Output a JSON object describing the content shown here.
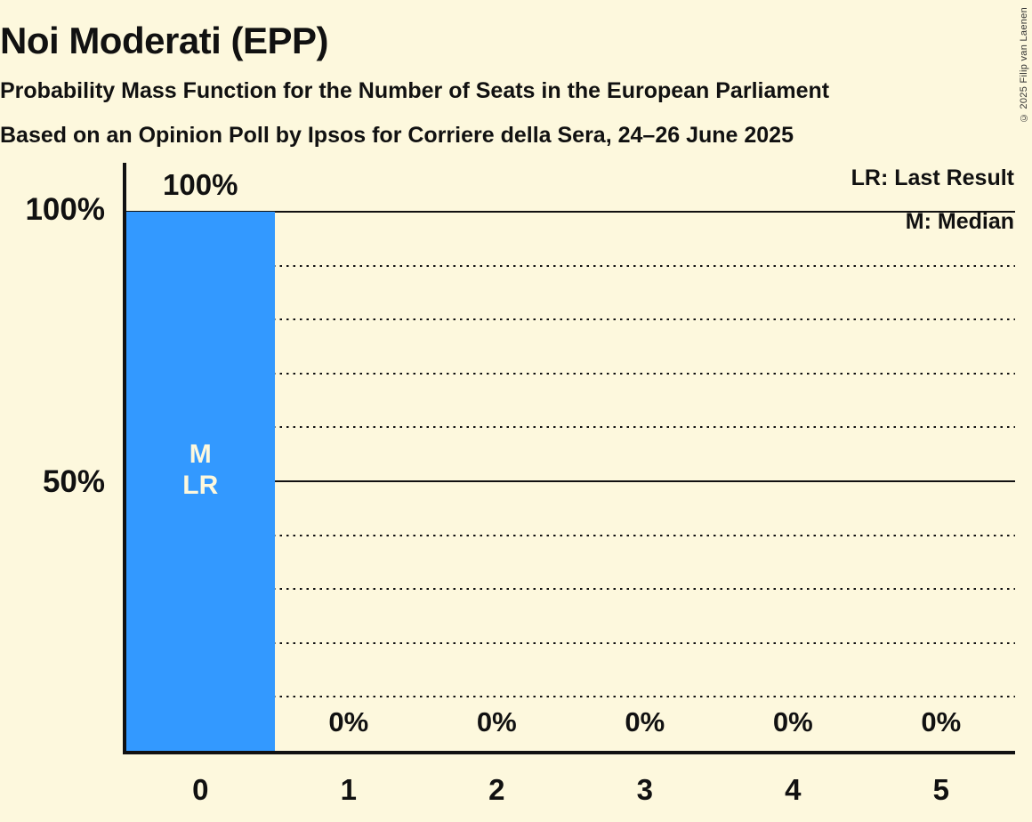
{
  "header": {
    "title": "Noi Moderati (EPP)",
    "subtitle1": "Probability Mass Function for the Number of Seats in the European Parliament",
    "subtitle2": "Based on an Opinion Poll by Ipsos for Corriere della Sera, 24–26 June 2025"
  },
  "legend": {
    "last_result_label": "LR: Last Result",
    "median_label": "M: Median"
  },
  "copyright": "© 2025 Filip van Laenen",
  "colors": {
    "background": "#fdf8dd",
    "bar": "#3399ff",
    "text": "#111111",
    "bar_text": "#fdf8dd"
  },
  "chart_data": {
    "type": "bar",
    "title": "Noi Moderati (EPP)",
    "categories": [
      "0",
      "1",
      "2",
      "3",
      "4",
      "5"
    ],
    "values": [
      100,
      0,
      0,
      0,
      0,
      0
    ],
    "bar_labels": [
      "100%",
      "0%",
      "0%",
      "0%",
      "0%",
      "0%"
    ],
    "bar_annotations": [
      [
        "M",
        "LR"
      ],
      [],
      [],
      [],
      [],
      []
    ],
    "median_seats": "0",
    "last_result_seats": "0",
    "xlabel": "",
    "ylabel": "",
    "ylim": [
      0,
      100
    ],
    "y_axis_ticks": [
      {
        "pct": 100,
        "label": "100%"
      },
      {
        "pct": 50,
        "label": "50%"
      }
    ],
    "solid_gridlines_pct": [
      100,
      50
    ],
    "dotted_gridlines_pct": [
      90,
      80,
      70,
      60,
      40,
      30,
      20,
      10
    ],
    "legend_position": "top-right",
    "grid": "horizontal-dotted-every-10pct"
  }
}
